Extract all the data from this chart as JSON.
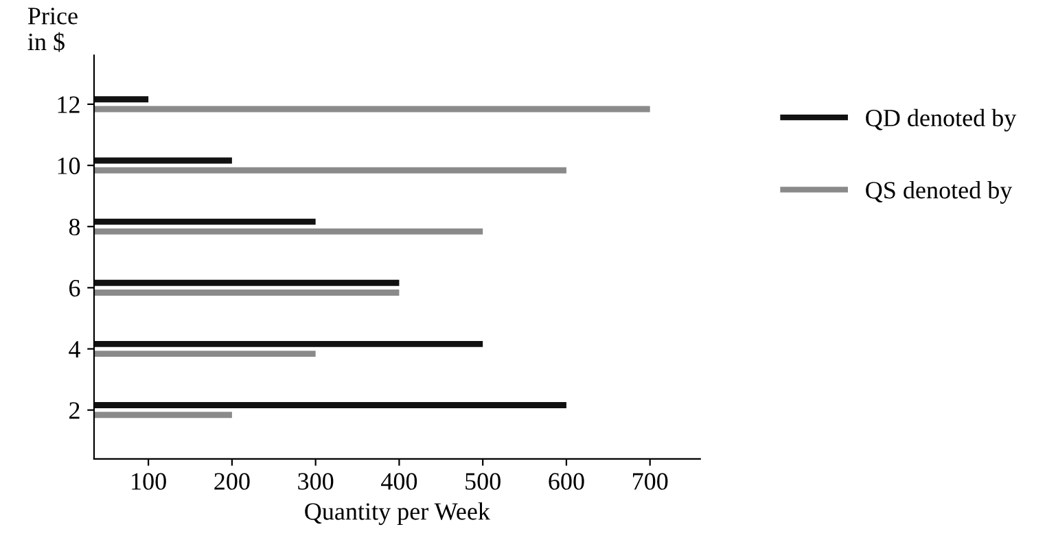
{
  "chart_data": {
    "type": "bar",
    "orientation": "horizontal",
    "xlabel": "Quantity per Week",
    "ylabel": "Price\nin $",
    "categories": [
      "12",
      "10",
      "8",
      "6",
      "4",
      "2"
    ],
    "series": [
      {
        "name": "QD denoted by",
        "color": "#111111",
        "values": [
          100,
          200,
          300,
          400,
          500,
          600
        ]
      },
      {
        "name": "QS denoted by",
        "color": "#8a8a8a",
        "values": [
          700,
          600,
          500,
          400,
          300,
          200
        ]
      }
    ],
    "xlim": [
      35,
      760
    ],
    "xticks": [
      100,
      200,
      300,
      400,
      500,
      600,
      700
    ],
    "grid": false,
    "legend": "right"
  }
}
